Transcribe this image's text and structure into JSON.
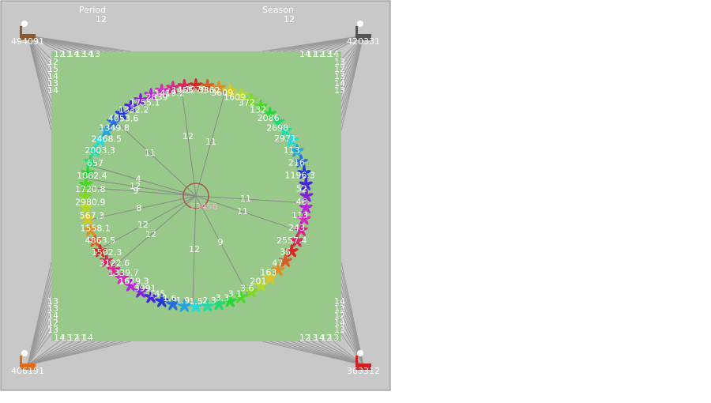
{
  "header": {
    "period_label": "Period",
    "period_value": "12",
    "season_label": "Season",
    "season_value": "12"
  },
  "factories": [
    {
      "label": "494091"
    },
    {
      "label": "420331"
    },
    {
      "label": "406191"
    },
    {
      "label": "363312"
    }
  ],
  "center_label": "23456",
  "farm_labels": [
    "3609",
    "1609",
    "372",
    "132",
    "2086",
    "2698",
    "2971",
    "113",
    "216",
    "1196.3",
    "52",
    "46",
    "113",
    "243",
    "2557.4",
    "35",
    "47",
    "163",
    "201",
    "3.6",
    "3.1",
    "3.3",
    "2.3",
    "1.5",
    "1.9",
    "1.6",
    "145",
    "3991",
    "1629.3",
    "1339.7",
    "3122.6",
    "1502.3",
    "4863.5",
    "1558.1",
    "567.3",
    "2980.9",
    "1720.8",
    "1062.4",
    "657",
    "2003.3",
    "2468.5",
    "1349.8",
    "4053.6",
    "1332.2",
    "1755.1",
    "2839",
    "1419.2",
    "1455",
    "1279",
    "3362"
  ],
  "link_labels": [
    "11",
    "12",
    "11",
    "4",
    "12",
    "9",
    "8",
    "12",
    "12",
    "12",
    "9",
    "11",
    "11"
  ],
  "edge_labels": [
    [
      "12",
      "11",
      "14",
      "13",
      "14",
      "13",
      "12",
      "15",
      "14",
      "13",
      "14"
    ],
    [
      "14",
      "13",
      "12",
      "11",
      "14",
      "13",
      "12",
      "13",
      "14",
      "13"
    ],
    [
      "14",
      "13",
      "12",
      "11",
      "14",
      "13",
      "12",
      "14",
      "13",
      "13"
    ],
    [
      "13",
      "12",
      "14",
      "13",
      "12",
      "13",
      "14",
      "12",
      "13",
      "14"
    ]
  ]
}
